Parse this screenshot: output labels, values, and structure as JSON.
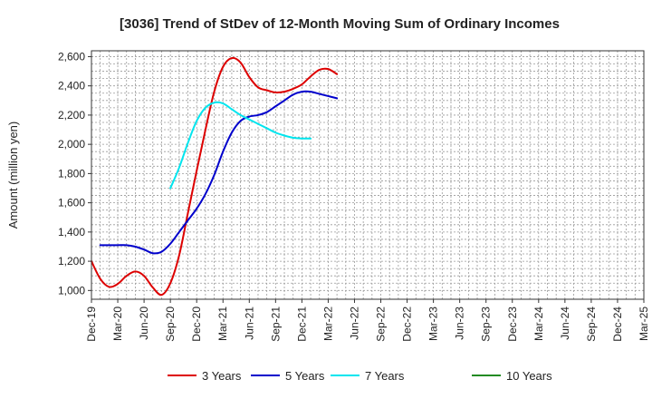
{
  "chart_data": {
    "type": "line",
    "title": "[3036]  Trend of StDev of 12-Month Moving Sum of Ordinary Incomes",
    "xlabel": "",
    "ylabel": "Amount (million yen)",
    "ylim": [
      940,
      2640
    ],
    "yticks": [
      1000,
      1200,
      1400,
      1600,
      1800,
      2000,
      2200,
      2400,
      2600
    ],
    "ytick_labels": [
      "1,000",
      "1,200",
      "1,400",
      "1,600",
      "1,800",
      "2,000",
      "2,200",
      "2,400",
      "2,600"
    ],
    "x_ticks": [
      "Dec-19",
      "Mar-20",
      "Jun-20",
      "Sep-20",
      "Dec-20",
      "Mar-21",
      "Jun-21",
      "Sep-21",
      "Dec-21",
      "Mar-22",
      "Jun-22",
      "Sep-22",
      "Dec-22",
      "Mar-23",
      "Jun-23",
      "Sep-23",
      "Dec-23",
      "Mar-24",
      "Jun-24",
      "Sep-24",
      "Dec-24",
      "Mar-25"
    ],
    "grid": true,
    "legend_position": "bottom",
    "series": [
      {
        "name": "3 Years",
        "color": "#dd0000",
        "start_index": 0,
        "values": [
          1200,
          1080,
          1025,
          1045,
          1100,
          1130,
          1100,
          1020,
          970,
          1050,
          1240,
          1530,
          1820,
          2100,
          2360,
          2530,
          2590,
          2560,
          2460,
          2390,
          2370,
          2355,
          2360,
          2380,
          2410,
          2465,
          2510,
          2515,
          2480
        ]
      },
      {
        "name": "5 Years",
        "color": "#0000cc",
        "start_index": 1,
        "values": [
          1310,
          1310,
          1310,
          1310,
          1300,
          1280,
          1255,
          1265,
          1320,
          1400,
          1480,
          1560,
          1660,
          1790,
          1950,
          2080,
          2160,
          2190,
          2200,
          2220,
          2260,
          2300,
          2340,
          2360,
          2360,
          2345,
          2330,
          2315
        ]
      },
      {
        "name": "7 Years",
        "color": "#00e5ee",
        "start_index": 9,
        "values": [
          1700,
          1840,
          2010,
          2160,
          2250,
          2285,
          2280,
          2240,
          2200,
          2170,
          2140,
          2110,
          2080,
          2060,
          2045,
          2040,
          2040
        ]
      },
      {
        "name": "10 Years",
        "color": "#228b22",
        "start_index": 0,
        "values": []
      }
    ]
  }
}
